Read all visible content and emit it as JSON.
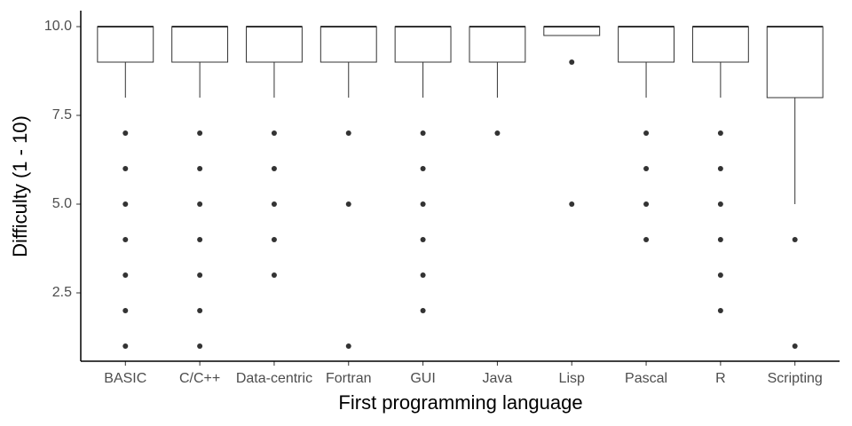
{
  "chart_data": {
    "type": "box",
    "x_label": "First programming language",
    "y_label": "Difficulty (1 - 10)",
    "categories": [
      "BASIC",
      "C/C++",
      "Data-centric",
      "Fortran",
      "GUI",
      "Java",
      "Lisp",
      "Pascal",
      "R",
      "Scripting"
    ],
    "q1": [
      9,
      9,
      9,
      9,
      9,
      9,
      9.75,
      9,
      9,
      8
    ],
    "median": [
      10,
      10,
      10,
      10,
      10,
      10,
      10,
      10,
      10,
      10
    ],
    "q3": [
      10,
      10,
      10,
      10,
      10,
      10,
      10,
      10,
      10,
      10
    ],
    "whisker_low": [
      8,
      8,
      8,
      8,
      8,
      8,
      9.75,
      8,
      8,
      5
    ],
    "whisker_high": [
      10,
      10,
      10,
      10,
      10,
      10,
      10,
      10,
      10,
      10
    ],
    "outliers": [
      [
        7,
        6,
        5,
        4,
        3,
        2,
        1
      ],
      [
        7,
        6,
        5,
        4,
        3,
        2,
        1
      ],
      [
        7,
        6,
        5,
        4,
        3
      ],
      [
        7,
        5,
        1
      ],
      [
        7,
        6,
        5,
        4,
        3,
        2
      ],
      [
        7
      ],
      [
        9,
        5
      ],
      [
        7,
        6,
        5,
        4
      ],
      [
        7,
        6,
        5,
        4,
        3,
        2
      ],
      [
        4,
        1
      ]
    ],
    "color": "#333333",
    "ylim": [
      0.575,
      10.45
    ],
    "yticks": [
      2.5,
      {
        "value": 5,
        "label": "5.0"
      },
      7.5,
      {
        "value": 10,
        "label": "10.0"
      }
    ],
    "grid": false
  }
}
